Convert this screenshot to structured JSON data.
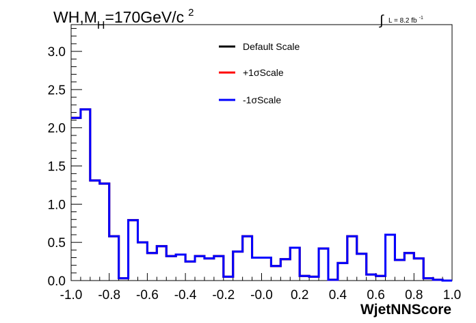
{
  "chart_data": {
    "type": "line",
    "drawstyle": "step",
    "title_main": "WH,M",
    "title_sub": "H",
    "title_rest": "=170GeV/c",
    "title_sup": "2",
    "lumi_symbol": "∫",
    "lumi_text": "L = 8.2 fb",
    "lumi_sup": "-1",
    "xlabel": "WjetNNScore",
    "ylabel": "",
    "xlim": [
      -1.0,
      1.0
    ],
    "ylim": [
      0,
      3.35
    ],
    "x_ticks": [
      "-1.0",
      "-0.8",
      "-0.6",
      "-0.4",
      "-0.2",
      "-0.0",
      "0.2",
      "0.4",
      "0.6",
      "0.8",
      "1.0"
    ],
    "y_ticks": [
      "0.0",
      "0.5",
      "1.0",
      "1.5",
      "2.0",
      "2.5",
      "3.0"
    ],
    "grid": false,
    "legend_position": "top-center",
    "bin_edges": [
      -1.0,
      -0.95,
      -0.9,
      -0.85,
      -0.8,
      -0.75,
      -0.7,
      -0.65,
      -0.6,
      -0.55,
      -0.5,
      -0.45,
      -0.4,
      -0.35,
      -0.3,
      -0.25,
      -0.2,
      -0.15,
      -0.1,
      -0.05,
      0.0,
      0.05,
      0.1,
      0.15,
      0.2,
      0.25,
      0.3,
      0.35,
      0.4,
      0.45,
      0.5,
      0.55,
      0.6,
      0.65,
      0.7,
      0.75,
      0.8,
      0.85,
      0.9,
      0.95,
      1.0
    ],
    "series": [
      {
        "name": "Default Scale",
        "color": "#000000",
        "values": [
          2.13,
          2.24,
          1.31,
          1.27,
          0.58,
          0.03,
          0.79,
          0.5,
          0.36,
          0.45,
          0.32,
          0.34,
          0.25,
          0.32,
          0.29,
          0.32,
          0.05,
          0.38,
          0.58,
          0.3,
          0.3,
          0.19,
          0.28,
          0.43,
          0.06,
          0.05,
          0.42,
          0.01,
          0.23,
          0.58,
          0.35,
          0.08,
          0.06,
          0.6,
          0.27,
          0.36,
          0.29,
          0.03,
          0.01,
          0.0
        ]
      },
      {
        "name": "+1σScale",
        "color": "#ff0000",
        "values": [
          2.13,
          2.24,
          1.31,
          1.27,
          0.58,
          0.03,
          0.79,
          0.5,
          0.36,
          0.45,
          0.32,
          0.34,
          0.25,
          0.32,
          0.29,
          0.32,
          0.05,
          0.38,
          0.58,
          0.3,
          0.3,
          0.19,
          0.28,
          0.43,
          0.06,
          0.05,
          0.42,
          0.01,
          0.23,
          0.58,
          0.35,
          0.08,
          0.06,
          0.6,
          0.27,
          0.36,
          0.29,
          0.03,
          0.01,
          0.0
        ]
      },
      {
        "name": "-1σScale",
        "color": "#0000ff",
        "values": [
          2.13,
          2.24,
          1.31,
          1.27,
          0.58,
          0.03,
          0.79,
          0.5,
          0.36,
          0.45,
          0.32,
          0.34,
          0.25,
          0.32,
          0.29,
          0.32,
          0.05,
          0.38,
          0.58,
          0.3,
          0.3,
          0.19,
          0.28,
          0.43,
          0.06,
          0.05,
          0.42,
          0.01,
          0.23,
          0.58,
          0.35,
          0.08,
          0.06,
          0.6,
          0.27,
          0.36,
          0.29,
          0.03,
          0.01,
          0.0
        ]
      }
    ]
  }
}
